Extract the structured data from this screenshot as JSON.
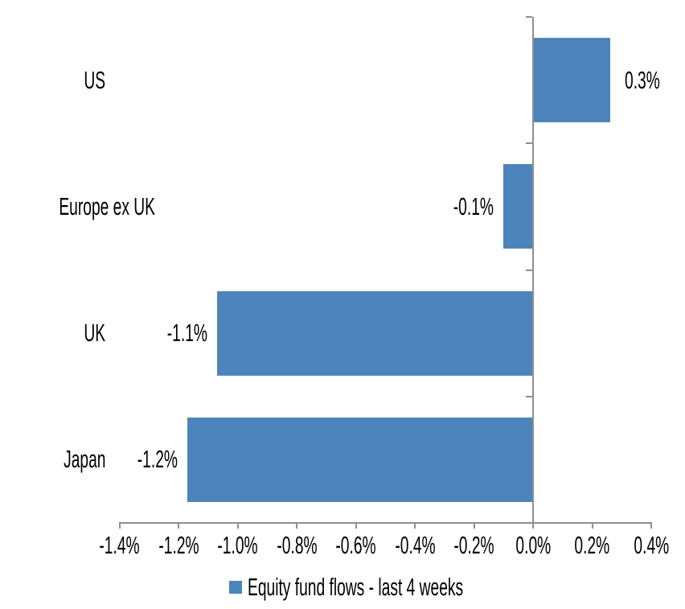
{
  "chart_data": {
    "type": "bar",
    "orientation": "horizontal",
    "title": "",
    "xlabel": "",
    "ylabel": "",
    "categories": [
      "US",
      "Europe ex UK",
      "UK",
      "Japan"
    ],
    "values": [
      0.3,
      -0.1,
      -1.1,
      -1.2
    ],
    "values_unrounded_pct": [
      0.26,
      -0.1,
      -1.07,
      -1.17
    ],
    "data_labels": [
      "0.3%",
      "-0.1%",
      "-1.1%",
      "-1.2%"
    ],
    "x_tick_labels": [
      "-1.4%",
      "-1.2%",
      "-1.0%",
      "-0.8%",
      "-0.6%",
      "-0.4%",
      "-0.2%",
      "0.0%",
      "0.2%",
      "0.4%"
    ],
    "xlim": [
      -1.4,
      0.4
    ],
    "unit": "percent",
    "grid": false,
    "data_label_position": "outside-end",
    "legend": {
      "position": "bottom-center",
      "entries": [
        {
          "label": "Equity fund flows - last 4 weeks",
          "color": "#4E84BC"
        }
      ]
    },
    "colors": {
      "bar": "#4E84BC",
      "axis": "#8F8F8F",
      "text": "#000000",
      "background": "#FFFFFF"
    }
  }
}
